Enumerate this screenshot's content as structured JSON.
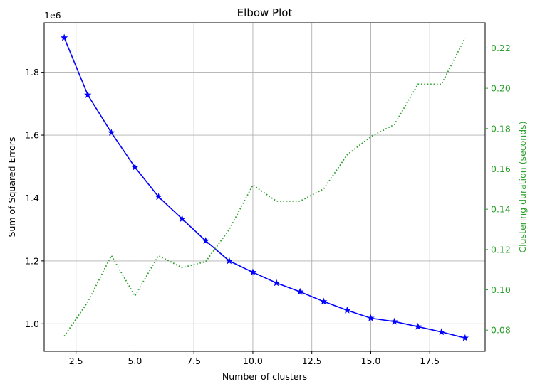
{
  "chart_data": {
    "type": "line",
    "title": "Elbow Plot",
    "xlabel": "Number of clusters",
    "ylabel": "Sum of Squared Errors",
    "y2label": "Clustering duration (seconds)",
    "y_offset_label": "1e6",
    "x_ticks": [
      "2.5",
      "5.0",
      "7.5",
      "10.0",
      "12.5",
      "15.0",
      "17.5"
    ],
    "y_ticks": [
      "1.0",
      "1.2",
      "1.4",
      "1.6",
      "1.8"
    ],
    "y2_ticks": [
      "0.08",
      "0.10",
      "0.12",
      "0.14",
      "0.16",
      "0.18",
      "0.20",
      "0.22"
    ],
    "xlim": [
      1.15,
      19.85
    ],
    "ylim": [
      0.9125,
      1.9575
    ],
    "y2lim": [
      0.0695,
      0.2325
    ],
    "grid": true,
    "x": [
      2,
      3,
      4,
      5,
      6,
      7,
      8,
      9,
      10,
      11,
      12,
      13,
      14,
      15,
      16,
      17,
      18,
      19
    ],
    "series": [
      {
        "axis": "left",
        "color": "#0000ff",
        "style": "solid",
        "marker": "star",
        "values": [
          1.91,
          1.728,
          1.608,
          1.498,
          1.404,
          1.334,
          1.264,
          1.2,
          1.164,
          1.13,
          1.102,
          1.071,
          1.043,
          1.018,
          1.007,
          0.991,
          0.974,
          0.955
        ]
      },
      {
        "axis": "right",
        "color": "#2ca02c",
        "style": "dotted",
        "marker": "none",
        "values": [
          0.077,
          0.094,
          0.117,
          0.097,
          0.117,
          0.111,
          0.114,
          0.13,
          0.152,
          0.144,
          0.144,
          0.15,
          0.167,
          0.176,
          0.182,
          0.202,
          0.202,
          0.225
        ]
      }
    ],
    "colors": {
      "left_axis": "#000000",
      "right_axis": "#2ca02c",
      "grid": "#b0b0b0"
    }
  }
}
